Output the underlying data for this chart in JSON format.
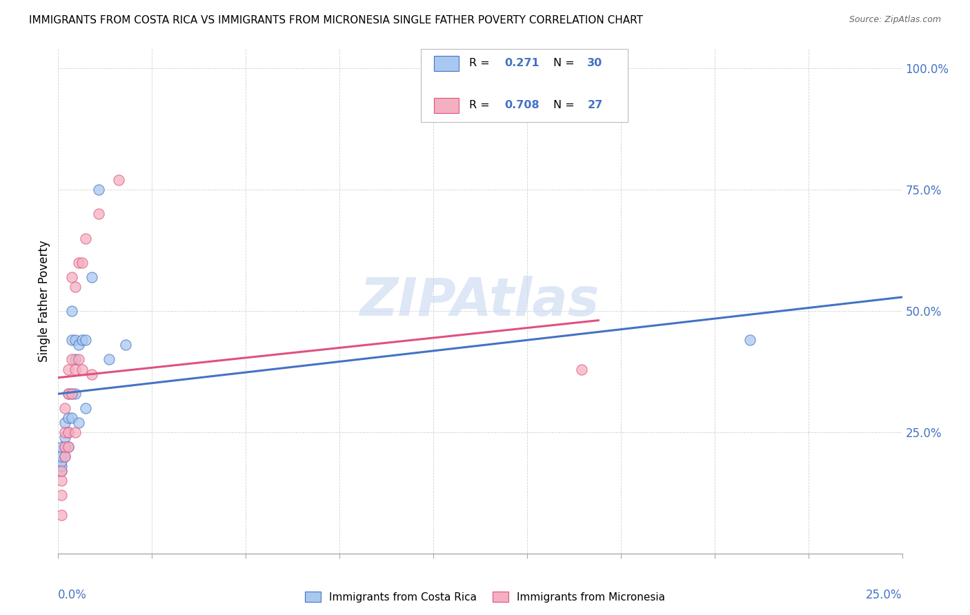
{
  "title": "IMMIGRANTS FROM COSTA RICA VS IMMIGRANTS FROM MICRONESIA SINGLE FATHER POVERTY CORRELATION CHART",
  "source": "Source: ZipAtlas.com",
  "ylabel": "Single Father Poverty",
  "r_costa_rica": 0.271,
  "n_costa_rica": 30,
  "r_micronesia": 0.708,
  "n_micronesia": 27,
  "color_costa_rica": "#A8C8F0",
  "color_micronesia": "#F4B0C0",
  "color_line_costa_rica": "#4472C4",
  "color_line_micronesia": "#E05080",
  "watermark_text": "ZIPAtlas",
  "watermark_color": "#C8D8F0",
  "costa_rica_x": [
    0.001,
    0.001,
    0.001,
    0.001,
    0.001,
    0.002,
    0.002,
    0.002,
    0.002,
    0.003,
    0.003,
    0.003,
    0.003,
    0.004,
    0.004,
    0.004,
    0.004,
    0.005,
    0.005,
    0.005,
    0.006,
    0.006,
    0.007,
    0.008,
    0.008,
    0.01,
    0.012,
    0.015,
    0.02,
    0.205
  ],
  "costa_rica_y": [
    0.17,
    0.18,
    0.19,
    0.2,
    0.22,
    0.2,
    0.22,
    0.24,
    0.27,
    0.22,
    0.25,
    0.28,
    0.33,
    0.28,
    0.33,
    0.44,
    0.5,
    0.33,
    0.4,
    0.44,
    0.27,
    0.43,
    0.44,
    0.3,
    0.44,
    0.57,
    0.75,
    0.4,
    0.43,
    0.44
  ],
  "micronesia_x": [
    0.001,
    0.001,
    0.001,
    0.001,
    0.002,
    0.002,
    0.002,
    0.002,
    0.003,
    0.003,
    0.003,
    0.003,
    0.004,
    0.004,
    0.004,
    0.005,
    0.005,
    0.005,
    0.006,
    0.006,
    0.007,
    0.007,
    0.008,
    0.01,
    0.012,
    0.018,
    0.155
  ],
  "micronesia_y": [
    0.08,
    0.12,
    0.15,
    0.17,
    0.2,
    0.22,
    0.25,
    0.3,
    0.22,
    0.25,
    0.33,
    0.38,
    0.33,
    0.4,
    0.57,
    0.25,
    0.38,
    0.55,
    0.4,
    0.6,
    0.38,
    0.6,
    0.65,
    0.37,
    0.7,
    0.77,
    0.38
  ],
  "xlim": [
    0.0,
    0.25
  ],
  "ylim": [
    0.0,
    1.04
  ],
  "yticks": [
    0.0,
    0.25,
    0.5,
    0.75,
    1.0
  ],
  "ytick_labels": [
    "",
    "25.0%",
    "50.0%",
    "75.0%",
    "100.0%"
  ]
}
